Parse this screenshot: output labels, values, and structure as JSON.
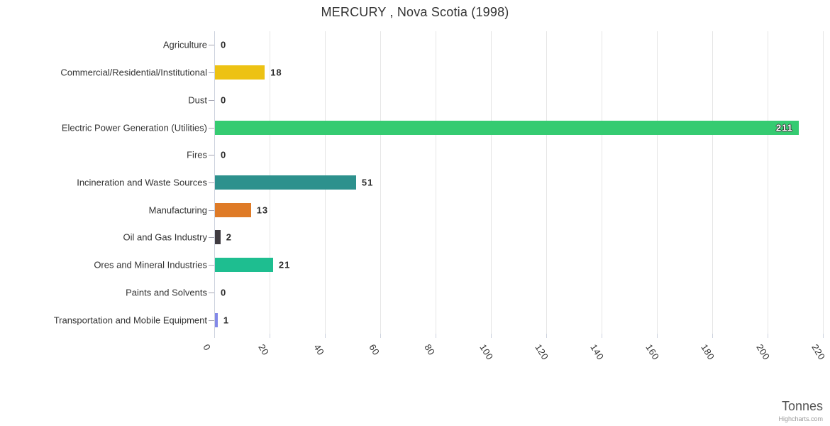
{
  "title": "MERCURY , Nova Scotia (1998)",
  "credits": "Highcharts.com",
  "chart_data": {
    "type": "bar",
    "orientation": "horizontal",
    "title": "MERCURY , Nova Scotia (1998)",
    "xlabel": "Tonnes",
    "ylabel": "",
    "categories": [
      "Agriculture",
      "Commercial/Residential/Institutional",
      "Dust",
      "Electric Power Generation (Utilities)",
      "Fires",
      "Incineration and Waste Sources",
      "Manufacturing",
      "Oil and Gas Industry",
      "Ores and Mineral Industries",
      "Paints and Solvents",
      "Transportation and Mobile Equipment"
    ],
    "values": [
      0,
      18,
      0,
      211,
      0,
      51,
      13,
      2,
      21,
      0,
      1
    ],
    "colors": [
      null,
      "#edc213",
      null,
      "#35cb71",
      null,
      "#2d918d",
      "#df7b27",
      "#3f3b41",
      "#1ebe90",
      null,
      "#8288e8"
    ],
    "label_inside": [
      false,
      false,
      false,
      true,
      false,
      false,
      false,
      false,
      false,
      false,
      false
    ],
    "xlim": [
      0,
      220
    ],
    "xticks": [
      0,
      20,
      40,
      60,
      80,
      100,
      120,
      140,
      160,
      180,
      200,
      220
    ],
    "grid": true,
    "legend": false,
    "tick_label_rotation_deg": 58
  },
  "style_colors": {
    "grid": "#e6e6e6",
    "axis": "#ccd2de",
    "category_tick": "#a5a5b2",
    "title": "#333333",
    "axis_title": "#555555",
    "credits": "#999999"
  }
}
